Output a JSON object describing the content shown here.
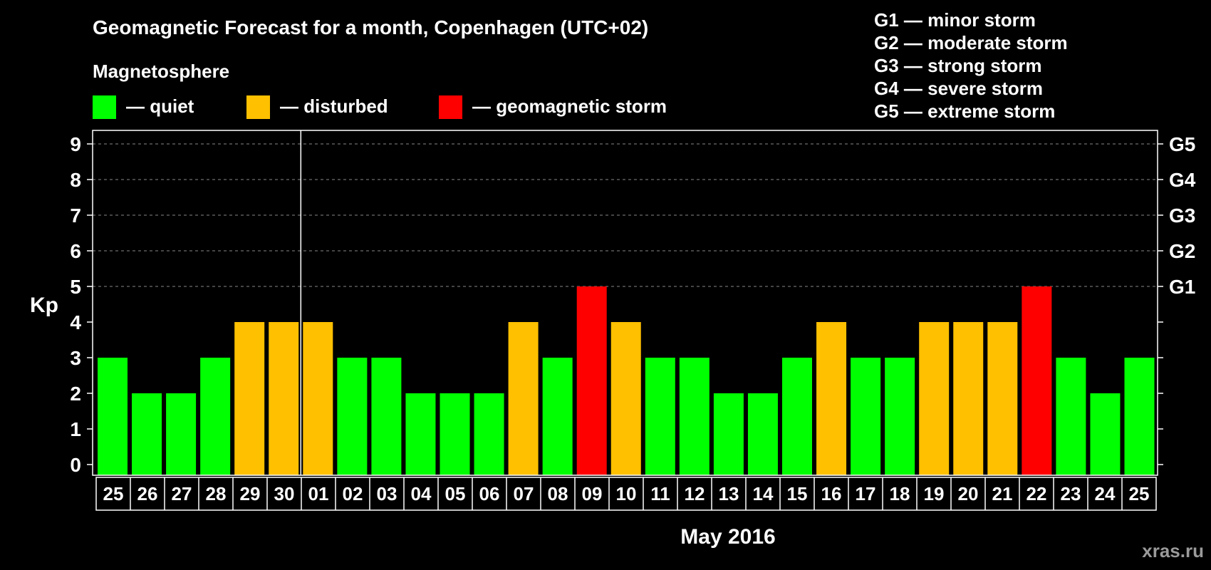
{
  "chart_data": {
    "type": "bar",
    "title": "Geomagnetic Forecast for a month, Copenhagen (UTC+02)",
    "legend_title": "Magnetosphere",
    "legend": [
      {
        "key": "quiet",
        "label": "— quiet",
        "color": "#00ff00"
      },
      {
        "key": "disturbed",
        "label": "— disturbed",
        "color": "#ffc000"
      },
      {
        "key": "storm",
        "label": "— geomagnetic storm",
        "color": "#ff0000"
      }
    ],
    "storm_scale": [
      "G1 — minor storm",
      "G2 — moderate storm",
      "G3 — strong storm",
      "G4 — severe storm",
      "G5 — extreme storm"
    ],
    "ylabel": "Kp",
    "xlabel": "May 2016",
    "ylim": [
      0,
      9
    ],
    "yticks": [
      "0",
      "1",
      "2",
      "3",
      "4",
      "5",
      "6",
      "7",
      "8",
      "9"
    ],
    "right_ticks": [
      {
        "value": 5,
        "label": "G1"
      },
      {
        "value": 6,
        "label": "G2"
      },
      {
        "value": 7,
        "label": "G3"
      },
      {
        "value": 8,
        "label": "G4"
      },
      {
        "value": 9,
        "label": "G5"
      }
    ],
    "categories": [
      "25",
      "26",
      "27",
      "28",
      "29",
      "30",
      "01",
      "02",
      "03",
      "04",
      "05",
      "06",
      "07",
      "08",
      "09",
      "10",
      "11",
      "12",
      "13",
      "14",
      "15",
      "16",
      "17",
      "18",
      "19",
      "20",
      "21",
      "22",
      "23",
      "24",
      "25"
    ],
    "values": [
      3,
      2,
      2,
      3,
      4,
      4,
      4,
      3,
      3,
      2,
      2,
      2,
      4,
      3,
      5,
      4,
      3,
      3,
      2,
      2,
      3,
      4,
      3,
      3,
      4,
      4,
      4,
      5,
      3,
      2,
      3
    ],
    "month_divider_after_index": 5,
    "watermark": "xras.ru"
  }
}
